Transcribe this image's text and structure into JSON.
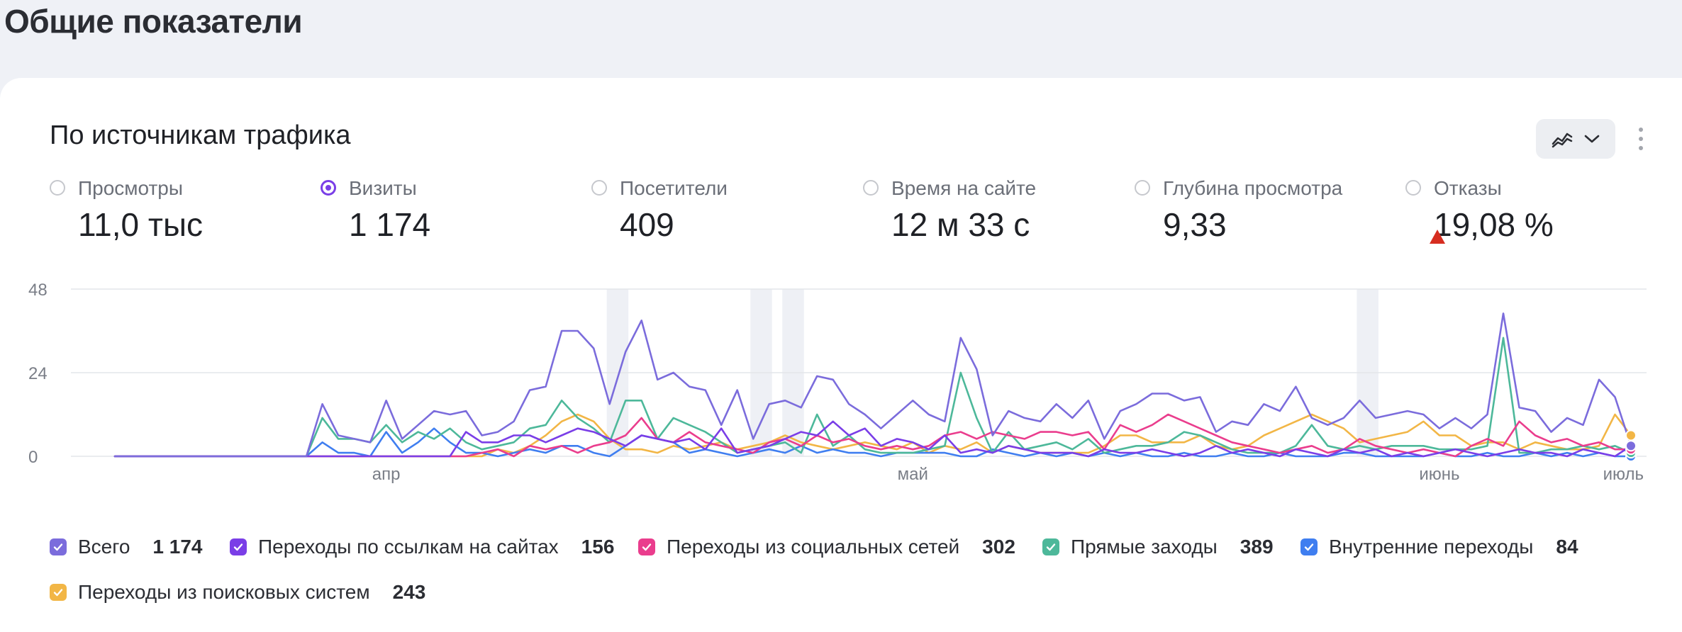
{
  "page_title": "Общие показатели",
  "card": {
    "title": "По источникам трафика",
    "view_icon": "line-chart-icon",
    "more_icon": "more-vertical-icon"
  },
  "metrics": [
    {
      "label": "Просмотры",
      "value": "11,0 тыс",
      "selected": false
    },
    {
      "label": "Визиты",
      "value": "1 174",
      "selected": true
    },
    {
      "label": "Посетители",
      "value": "409",
      "selected": false
    },
    {
      "label": "Время на сайте",
      "value": "12 м 33 с",
      "selected": false
    },
    {
      "label": "Глубина просмотра",
      "value": "9,33",
      "selected": false
    },
    {
      "label": "Отказы",
      "value": "19,08 %",
      "selected": false,
      "trend": "up"
    }
  ],
  "colors": {
    "accent": "#7a3ee7",
    "trend_up": "#d62d20",
    "grid": "#e3e5ea",
    "highlight_band": "#eef0f5"
  },
  "legend": [
    {
      "name": "Всего",
      "value": "1 174",
      "color": "#7b6cdc"
    },
    {
      "name": "Переходы по ссылкам на сайтах",
      "value": "156",
      "color": "#7a3ee7"
    },
    {
      "name": "Переходы из социальных сетей",
      "value": "302",
      "color": "#ea3d8d"
    },
    {
      "name": "Прямые заходы",
      "value": "389",
      "color": "#4db89a"
    },
    {
      "name": "Внутренние переходы",
      "value": "84",
      "color": "#3f7ef0"
    },
    {
      "name": "Переходы из поисковых систем",
      "value": "243",
      "color": "#f2b646"
    }
  ],
  "chart_data": {
    "type": "line",
    "x_labels": [
      "апр",
      "май",
      "июнь",
      "июль"
    ],
    "x_label_index": [
      17,
      50,
      83,
      100
    ],
    "y_ticks": [
      "0",
      "24",
      "48"
    ],
    "ylim": [
      0,
      48
    ],
    "grid": true,
    "legend_position": "bottom",
    "highlight_bands": [
      [
        31,
        32
      ],
      [
        40,
        41
      ],
      [
        42,
        43
      ],
      [
        78,
        79
      ]
    ],
    "series": [
      {
        "name": "Всего",
        "values": [
          0,
          0,
          0,
          0,
          0,
          0,
          0,
          0,
          0,
          0,
          0,
          0,
          0,
          15,
          6,
          5,
          4,
          16,
          5,
          9,
          13,
          12,
          13,
          6,
          7,
          10,
          19,
          20,
          36,
          36,
          31,
          15,
          30,
          39,
          22,
          24,
          20,
          19,
          9,
          19,
          5,
          15,
          16,
          14,
          23,
          22,
          15,
          12,
          8,
          12,
          16,
          12,
          10,
          34,
          25,
          6,
          13,
          11,
          10,
          15,
          11,
          16,
          5,
          13,
          15,
          18,
          18,
          16,
          17,
          7,
          10,
          9,
          15,
          13,
          20,
          11,
          9,
          11,
          16,
          11,
          12,
          13,
          12,
          8,
          11,
          8,
          12,
          41,
          14,
          13,
          7,
          11,
          9,
          22,
          17,
          3
        ]
      },
      {
        "name": "Переходы по ссылкам на сайтах",
        "values": [
          0,
          0,
          0,
          0,
          0,
          0,
          0,
          0,
          0,
          0,
          0,
          0,
          0,
          0,
          0,
          0,
          0,
          0,
          0,
          0,
          0,
          0,
          7,
          4,
          4,
          6,
          6,
          4,
          6,
          8,
          7,
          5,
          3,
          6,
          5,
          4,
          5,
          2,
          8,
          1,
          2,
          3,
          5,
          7,
          6,
          10,
          6,
          8,
          3,
          5,
          4,
          2,
          6,
          1,
          2,
          1,
          3,
          2,
          1,
          1,
          1,
          0,
          2,
          1,
          1,
          2,
          1,
          0,
          1,
          3,
          1,
          2,
          1,
          0,
          2,
          1,
          0,
          2,
          1,
          2,
          0,
          1,
          0,
          1,
          2,
          1,
          0,
          1,
          2,
          1,
          1,
          0,
          2,
          1,
          0,
          3
        ]
      },
      {
        "name": "Переходы из социальных сетей",
        "values": [
          0,
          0,
          0,
          0,
          0,
          0,
          0,
          0,
          0,
          0,
          0,
          0,
          0,
          0,
          0,
          0,
          0,
          0,
          0,
          0,
          0,
          0,
          0,
          1,
          2,
          0,
          3,
          2,
          3,
          1,
          3,
          4,
          6,
          11,
          5,
          4,
          7,
          4,
          3,
          2,
          1,
          4,
          5,
          3,
          6,
          4,
          5,
          3,
          2,
          3,
          2,
          3,
          6,
          7,
          5,
          7,
          6,
          5,
          7,
          7,
          6,
          7,
          2,
          9,
          7,
          9,
          12,
          10,
          8,
          6,
          4,
          3,
          2,
          1,
          2,
          3,
          1,
          2,
          5,
          3,
          2,
          1,
          2,
          1,
          0,
          3,
          5,
          3,
          10,
          6,
          4,
          5,
          3,
          4,
          2,
          2
        ]
      },
      {
        "name": "Прямые заходы",
        "values": [
          0,
          0,
          0,
          0,
          0,
          0,
          0,
          0,
          0,
          0,
          0,
          0,
          0,
          11,
          5,
          5,
          4,
          9,
          4,
          7,
          5,
          8,
          4,
          2,
          3,
          4,
          8,
          9,
          16,
          11,
          8,
          4,
          16,
          16,
          5,
          11,
          9,
          7,
          4,
          1,
          2,
          3,
          4,
          1,
          12,
          3,
          6,
          2,
          1,
          1,
          1,
          2,
          3,
          24,
          11,
          1,
          7,
          2,
          3,
          4,
          2,
          5,
          1,
          2,
          3,
          3,
          4,
          7,
          6,
          4,
          2,
          1,
          1,
          1,
          3,
          9,
          3,
          2,
          3,
          2,
          3,
          3,
          3,
          2,
          2,
          2,
          3,
          34,
          1,
          1,
          2,
          2,
          3,
          2,
          3,
          1
        ]
      },
      {
        "name": "Внутренние переходы",
        "values": [
          0,
          0,
          0,
          0,
          0,
          0,
          0,
          0,
          0,
          0,
          0,
          0,
          0,
          4,
          1,
          1,
          0,
          7,
          1,
          4,
          8,
          4,
          1,
          1,
          0,
          1,
          2,
          1,
          3,
          3,
          1,
          0,
          3,
          6,
          5,
          4,
          1,
          2,
          1,
          0,
          1,
          2,
          1,
          3,
          1,
          2,
          1,
          1,
          0,
          1,
          1,
          1,
          1,
          0,
          0,
          2,
          1,
          0,
          1,
          0,
          1,
          0,
          1,
          0,
          1,
          0,
          0,
          1,
          0,
          0,
          1,
          0,
          0,
          1,
          0,
          0,
          0,
          1,
          1,
          0,
          0,
          0,
          0,
          1,
          0,
          0,
          1,
          0,
          0,
          1,
          0,
          1,
          0,
          1,
          0,
          0
        ]
      },
      {
        "name": "Переходы из поисковых систем",
        "values": [
          0,
          0,
          0,
          0,
          0,
          0,
          0,
          0,
          0,
          0,
          0,
          0,
          0,
          0,
          0,
          0,
          0,
          0,
          0,
          0,
          0,
          0,
          0,
          0,
          2,
          1,
          3,
          6,
          10,
          12,
          10,
          5,
          2,
          2,
          1,
          3,
          2,
          3,
          4,
          2,
          3,
          4,
          6,
          4,
          3,
          2,
          3,
          4,
          3,
          2,
          4,
          1,
          3,
          2,
          4,
          1,
          3,
          2,
          1,
          1,
          1,
          1,
          3,
          6,
          6,
          4,
          4,
          4,
          6,
          3,
          2,
          3,
          6,
          8,
          10,
          12,
          10,
          8,
          4,
          5,
          6,
          7,
          10,
          6,
          6,
          3,
          4,
          4,
          2,
          4,
          3,
          2,
          2,
          3,
          12,
          6
        ]
      }
    ]
  }
}
